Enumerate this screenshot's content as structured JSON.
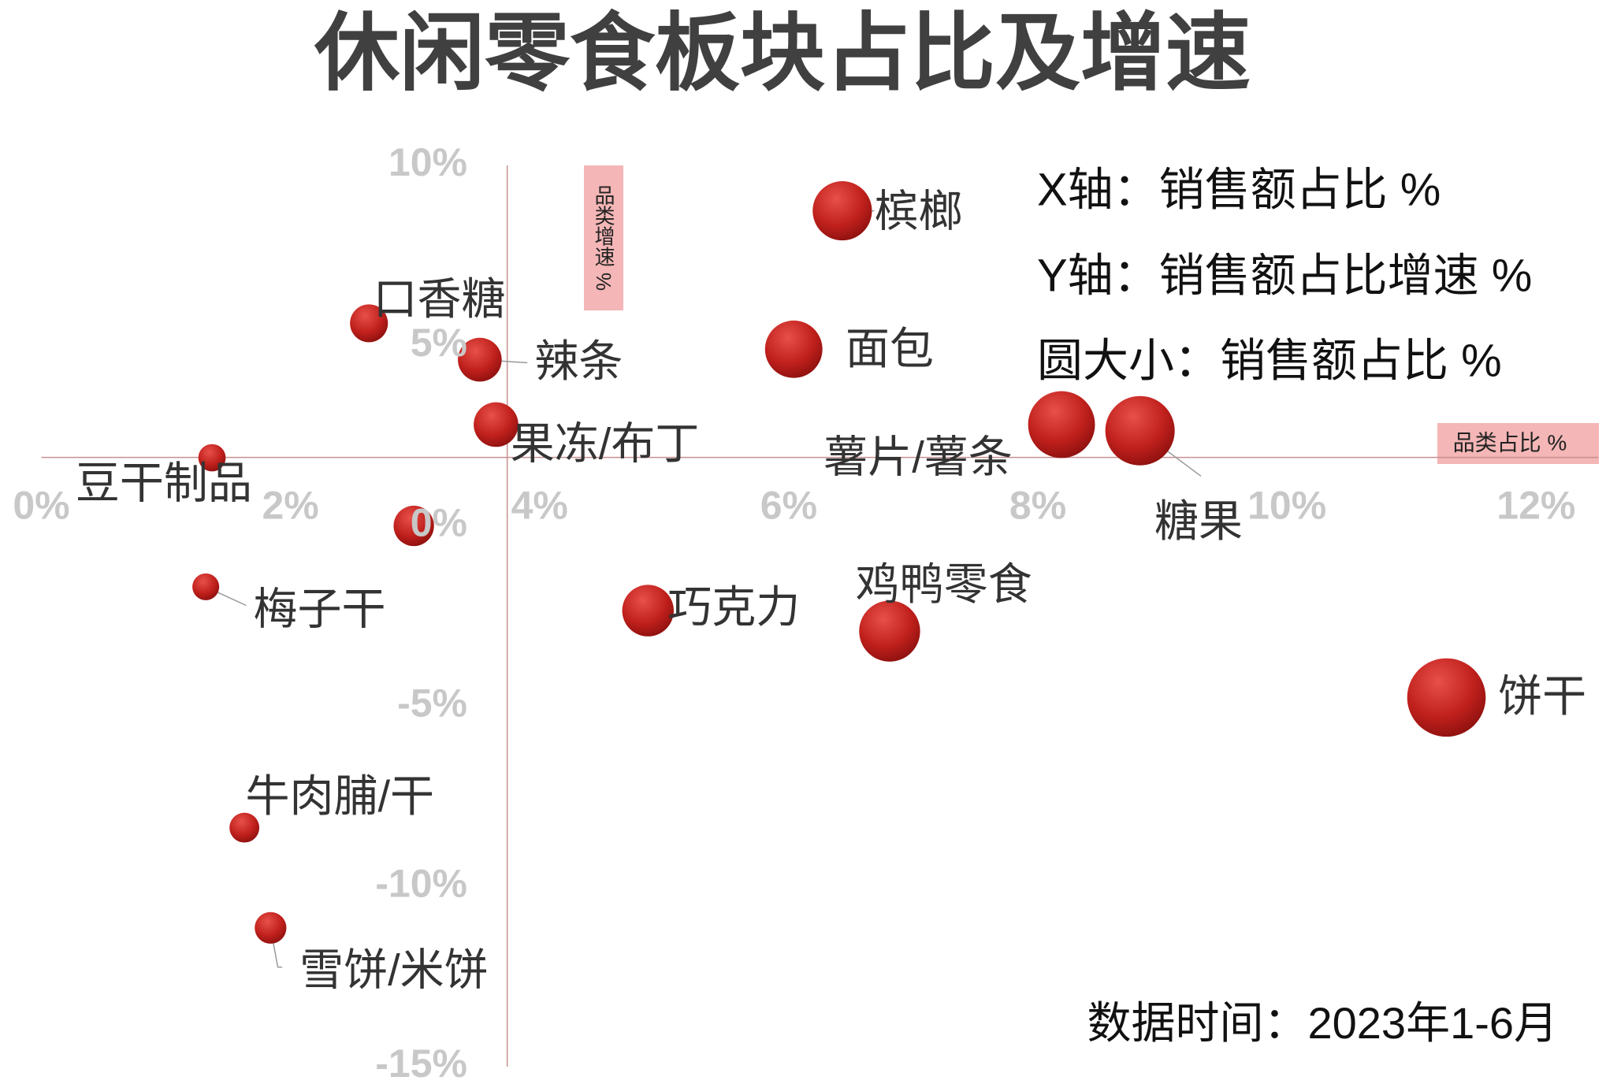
{
  "chart_data": {
    "type": "bubble",
    "title": "休闲零食板块占比及增速",
    "legend_lines": [
      "X轴：销售额占比 %",
      "Y轴：销售额占比增速 %",
      "圆大小：销售额占比 %"
    ],
    "note": "数据时间：2023年1-6月",
    "x_axis_title": "品类占比 %",
    "y_axis_title": "品类增速 %",
    "color": "#c0201c",
    "xlim": [
      0,
      12.5
    ],
    "ylim": [
      -15,
      10
    ],
    "xticks": [
      {
        "value": 0,
        "label": "0%"
      },
      {
        "value": 2,
        "label": "2%"
      },
      {
        "value": 4,
        "label": "4%"
      },
      {
        "value": 6,
        "label": "6%"
      },
      {
        "value": 8,
        "label": "8%"
      },
      {
        "value": 10,
        "label": "10%"
      },
      {
        "value": 12,
        "label": "12%"
      }
    ],
    "yticks": [
      {
        "value": 10,
        "label": "10%"
      },
      {
        "value": 5,
        "label": "5%"
      },
      {
        "value": 0,
        "label": "0%"
      },
      {
        "value": -5,
        "label": "-5%"
      },
      {
        "value": -10,
        "label": "-10%"
      },
      {
        "value": -15,
        "label": "-15%"
      }
    ],
    "x_axis_crosses_at": 1.9,
    "y_axis_crosses_at": 3.74,
    "categories": [
      "槟榔",
      "口香糖",
      "辣条",
      "面包",
      "果冻/布丁",
      "豆干制品",
      "薯片/薯条",
      "糖果",
      null,
      "梅子干",
      "巧克力",
      "鸡鸭零食",
      "饼干",
      "牛肉脯/干",
      "雪饼/米饼"
    ],
    "x": [
      6.43,
      2.63,
      3.52,
      6.04,
      3.65,
      1.37,
      8.19,
      8.82,
      2.99,
      1.32,
      4.87,
      6.81,
      11.28,
      1.63,
      1.84
    ],
    "values": [
      8.74,
      5.62,
      4.61,
      4.9,
      2.81,
      1.89,
      2.81,
      2.64,
      0,
      -1.69,
      -2.35,
      -2.92,
      -4.76,
      -8.37,
      -11.15
    ]
  }
}
